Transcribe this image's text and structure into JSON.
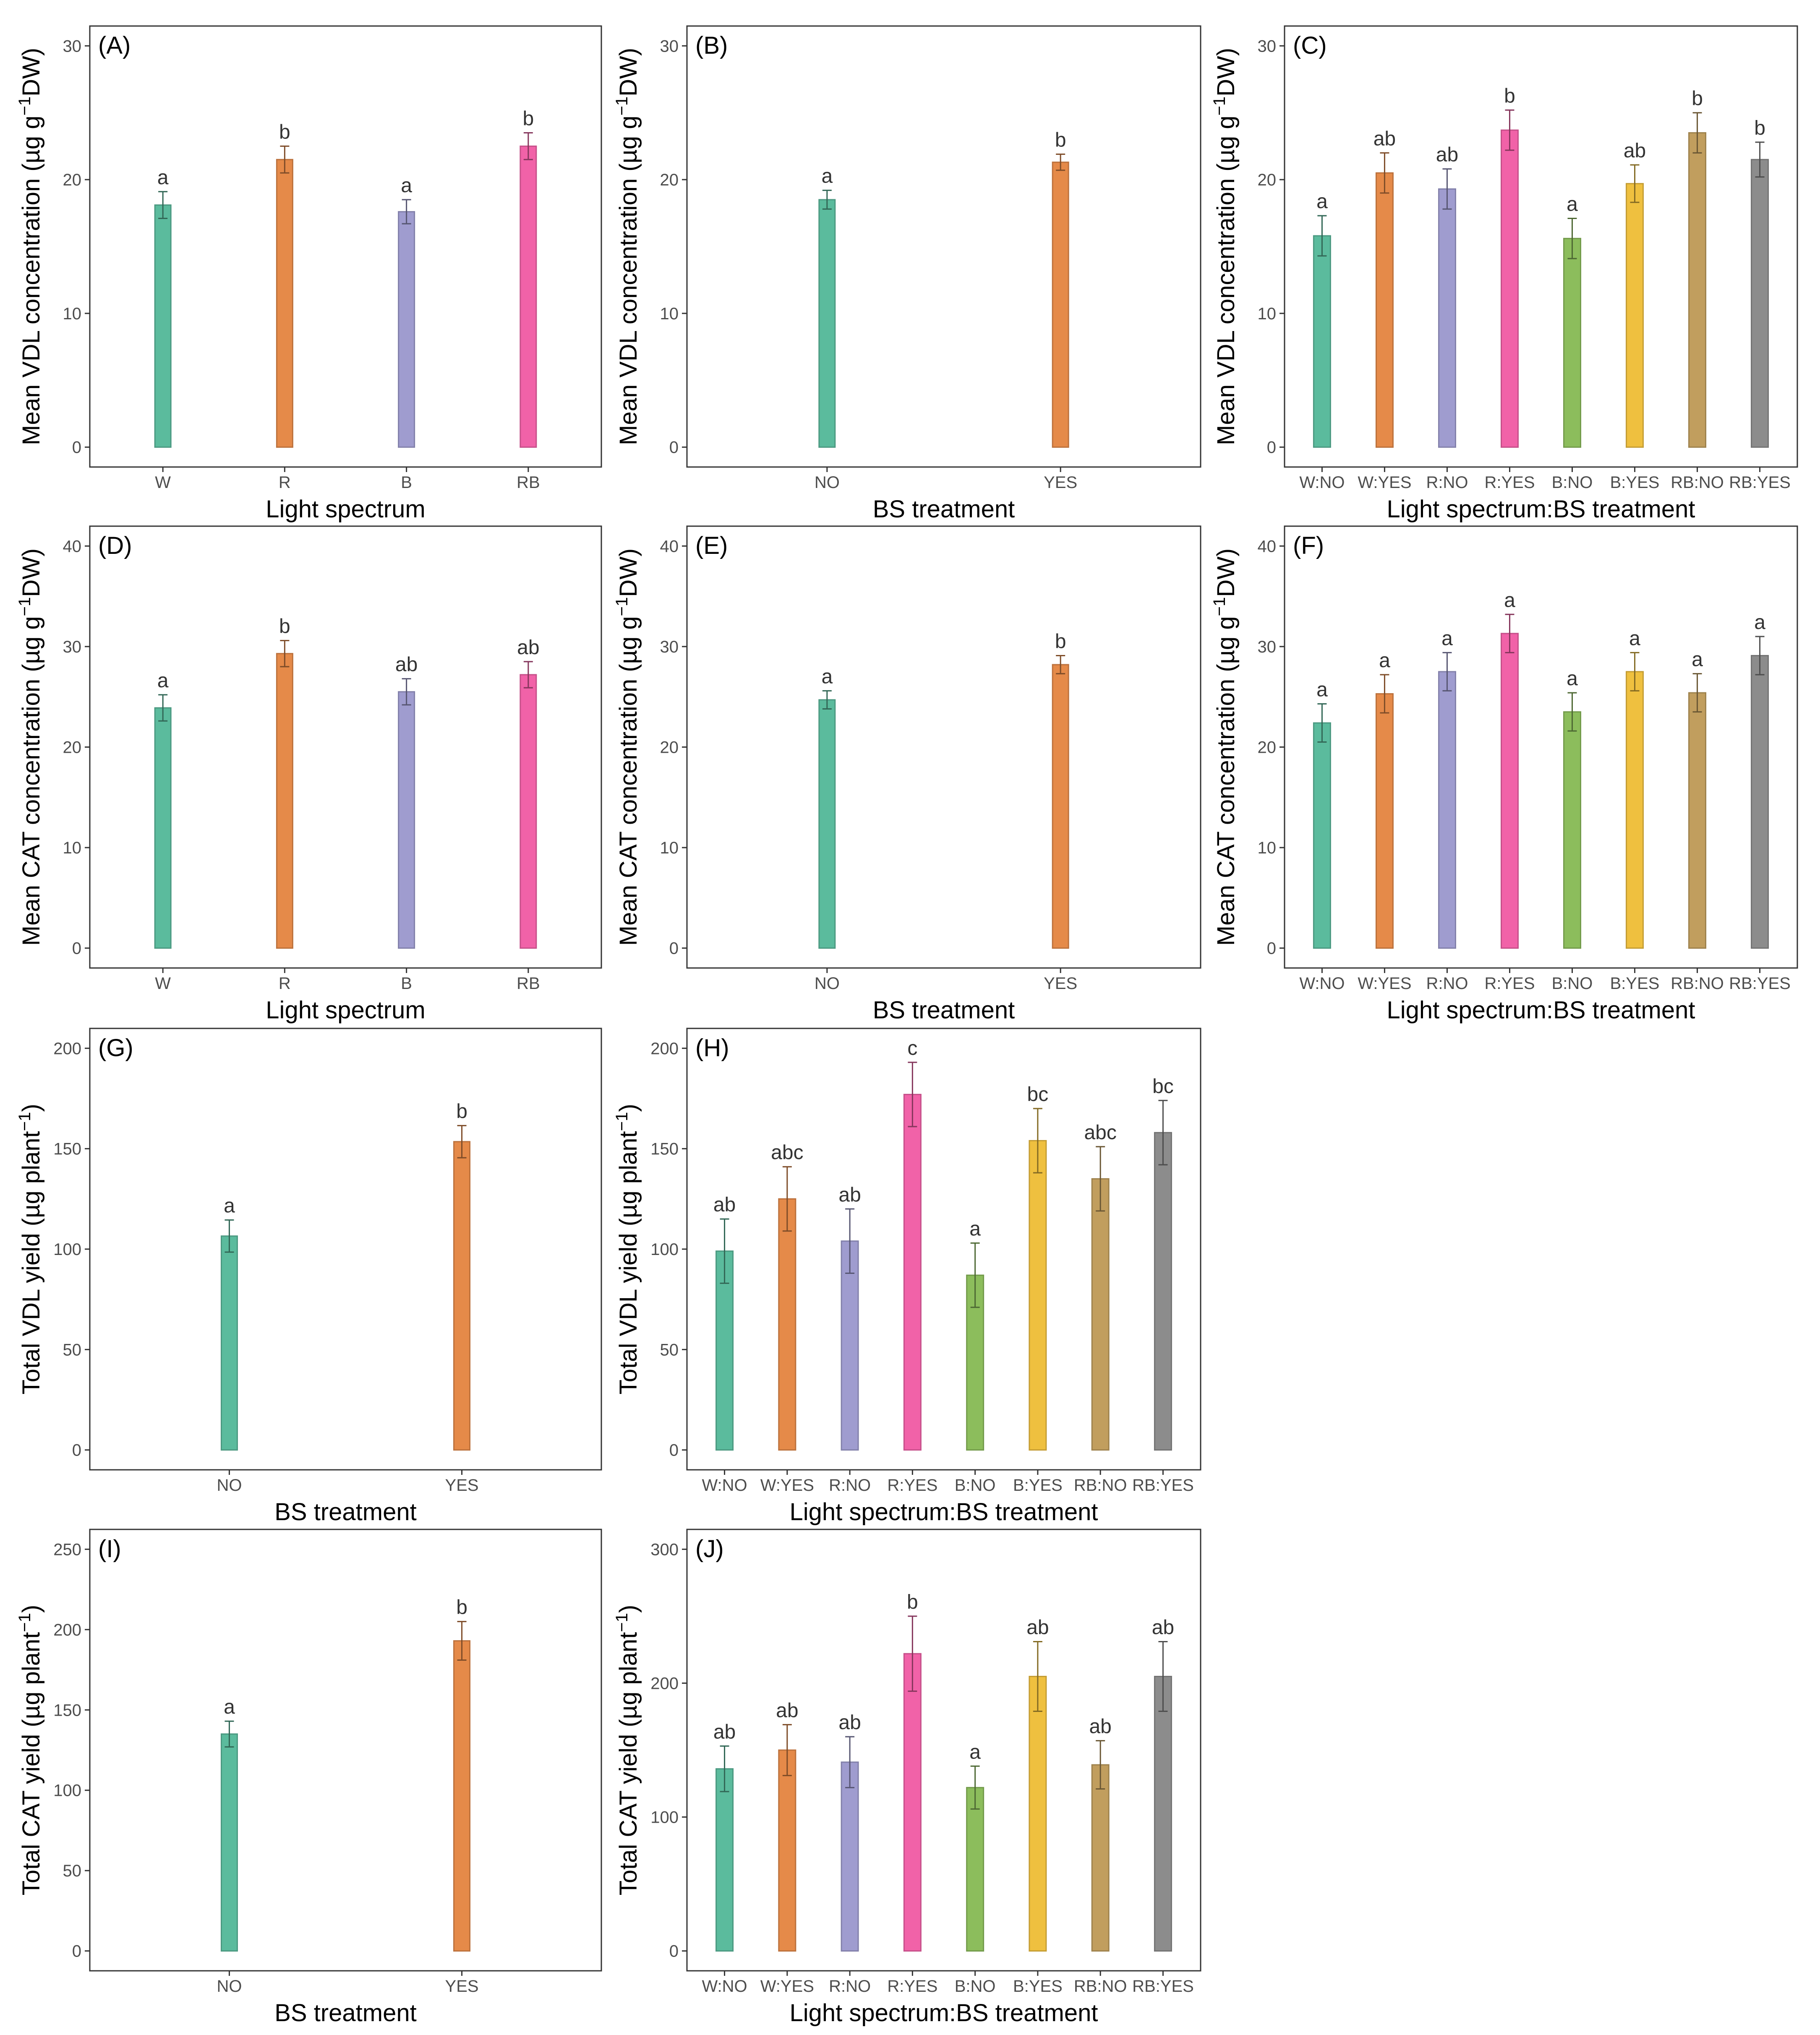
{
  "figure": {
    "colors": {
      "W": "#5bbb9d",
      "R": "#e58a49",
      "B": "#9f9ccf",
      "RB": "#f162a8",
      "W:NO": "#5bbb9d",
      "W:YES": "#e58a49",
      "R:NO": "#9f9ccf",
      "R:YES": "#f162a8",
      "B:NO": "#8cbd5c",
      "B:YES": "#efc03f",
      "RB:NO": "#c19e5e",
      "RB:YES": "#8c8c8c",
      "NO": "#5bbb9d",
      "YES": "#e58a49"
    }
  },
  "chart_data": [
    {
      "panel": "(A)",
      "type": "bar",
      "categories": [
        "W",
        "R",
        "B",
        "RB"
      ],
      "values": [
        18.1,
        21.5,
        17.6,
        22.5
      ],
      "errors": [
        1.0,
        1.0,
        0.9,
        1.0
      ],
      "labels": [
        "a",
        "b",
        "a",
        "b"
      ],
      "xlabel": "Light spectrum",
      "ylabel_main": "Mean VDL concentration (µg g",
      "ylabel_sup": "−1",
      "ylabel_tail": "DW)",
      "ylim": [
        0,
        30
      ],
      "yticks": [
        0,
        10,
        20,
        30
      ],
      "grid": false
    },
    {
      "panel": "(B)",
      "type": "bar",
      "categories": [
        "NO",
        "YES"
      ],
      "values": [
        18.5,
        21.3
      ],
      "errors": [
        0.7,
        0.6
      ],
      "labels": [
        "a",
        "b"
      ],
      "xlabel": "BS treatment",
      "ylabel_main": "Mean VDL concentration (µg g",
      "ylabel_sup": "−1",
      "ylabel_tail": "DW)",
      "ylim": [
        0,
        30
      ],
      "yticks": [
        0,
        10,
        20,
        30
      ],
      "grid": false
    },
    {
      "panel": "(C)",
      "type": "bar",
      "categories": [
        "W:NO",
        "W:YES",
        "R:NO",
        "R:YES",
        "B:NO",
        "B:YES",
        "RB:NO",
        "RB:YES"
      ],
      "values": [
        15.8,
        20.5,
        19.3,
        23.7,
        15.6,
        19.7,
        23.5,
        21.5
      ],
      "errors": [
        1.5,
        1.5,
        1.5,
        1.5,
        1.5,
        1.4,
        1.5,
        1.3
      ],
      "labels": [
        "a",
        "ab",
        "ab",
        "b",
        "a",
        "ab",
        "b",
        "b"
      ],
      "xlabel": "Light spectrum:BS treatment",
      "ylabel_main": "Mean VDL concentration (µg g",
      "ylabel_sup": "−1",
      "ylabel_tail": "DW)",
      "ylim": [
        0,
        30
      ],
      "yticks": [
        0,
        10,
        20,
        30
      ],
      "grid": false
    },
    {
      "panel": "(D)",
      "type": "bar",
      "categories": [
        "W",
        "R",
        "B",
        "RB"
      ],
      "values": [
        23.9,
        29.3,
        25.5,
        27.2
      ],
      "errors": [
        1.3,
        1.3,
        1.3,
        1.3
      ],
      "labels": [
        "a",
        "b",
        "ab",
        "ab"
      ],
      "xlabel": "Light spectrum",
      "ylabel_main": "Mean CAT concentration (µg g",
      "ylabel_sup": "−1",
      "ylabel_tail": "DW)",
      "ylim": [
        0,
        40
      ],
      "yticks": [
        0,
        10,
        20,
        30,
        40
      ],
      "grid": false
    },
    {
      "panel": "(E)",
      "type": "bar",
      "categories": [
        "NO",
        "YES"
      ],
      "values": [
        24.7,
        28.2
      ],
      "errors": [
        0.9,
        0.9
      ],
      "labels": [
        "a",
        "b"
      ],
      "xlabel": "BS treatment",
      "ylabel_main": "Mean CAT concentration (µg g",
      "ylabel_sup": "−1",
      "ylabel_tail": "DW)",
      "ylim": [
        0,
        40
      ],
      "yticks": [
        0,
        10,
        20,
        30,
        40
      ],
      "grid": false
    },
    {
      "panel": "(F)",
      "type": "bar",
      "categories": [
        "W:NO",
        "W:YES",
        "R:NO",
        "R:YES",
        "B:NO",
        "B:YES",
        "RB:NO",
        "RB:YES"
      ],
      "values": [
        22.4,
        25.3,
        27.5,
        31.3,
        23.5,
        27.5,
        25.4,
        29.1
      ],
      "errors": [
        1.9,
        1.9,
        1.9,
        1.9,
        1.9,
        1.9,
        1.9,
        1.9
      ],
      "labels": [
        "a",
        "a",
        "a",
        "a",
        "a",
        "a",
        "a",
        "a"
      ],
      "xlabel": "Light spectrum:BS treatment",
      "ylabel_main": "Mean CAT concentration (µg g",
      "ylabel_sup": "−1",
      "ylabel_tail": "DW)",
      "ylim": [
        0,
        40
      ],
      "yticks": [
        0,
        10,
        20,
        30,
        40
      ],
      "grid": false
    },
    {
      "panel": "(G)",
      "type": "bar",
      "categories": [
        "NO",
        "YES"
      ],
      "values": [
        106.5,
        153.5
      ],
      "errors": [
        8,
        8
      ],
      "labels": [
        "a",
        "b"
      ],
      "xlabel": "BS treatment",
      "ylabel_main": "Total VDL yield (µg plant",
      "ylabel_sup": "−1",
      "ylabel_tail": ")",
      "ylim": [
        0,
        200
      ],
      "yticks": [
        0,
        50,
        100,
        150,
        200
      ],
      "grid": false
    },
    {
      "panel": "(H)",
      "type": "bar",
      "categories": [
        "W:NO",
        "W:YES",
        "R:NO",
        "R:YES",
        "B:NO",
        "B:YES",
        "RB:NO",
        "RB:YES"
      ],
      "values": [
        99,
        125,
        104,
        177,
        87,
        154,
        135,
        158
      ],
      "errors": [
        16,
        16,
        16,
        16,
        16,
        16,
        16,
        16
      ],
      "labels": [
        "ab",
        "abc",
        "ab",
        "c",
        "a",
        "bc",
        "abc",
        "bc"
      ],
      "xlabel": "Light spectrum:BS treatment",
      "ylabel_main": "Total VDL yield (µg plant",
      "ylabel_sup": "−1",
      "ylabel_tail": ")",
      "ylim": [
        0,
        200
      ],
      "yticks": [
        0,
        50,
        100,
        150,
        200
      ],
      "grid": false
    },
    {
      "panel": "(I)",
      "type": "bar",
      "categories": [
        "NO",
        "YES"
      ],
      "values": [
        135,
        193
      ],
      "errors": [
        8,
        12
      ],
      "labels": [
        "a",
        "b"
      ],
      "xlabel": "BS treatment",
      "ylabel_main": "Total CAT yield (µg plant",
      "ylabel_sup": "−1",
      "ylabel_tail": ")",
      "ylim": [
        0,
        250
      ],
      "yticks": [
        0,
        50,
        100,
        150,
        200,
        250
      ],
      "grid": false
    },
    {
      "panel": "(J)",
      "type": "bar",
      "categories": [
        "W:NO",
        "W:YES",
        "R:NO",
        "R:YES",
        "B:NO",
        "B:YES",
        "RB:NO",
        "RB:YES"
      ],
      "values": [
        136,
        150,
        141,
        222,
        122,
        205,
        139,
        205
      ],
      "errors": [
        17,
        19,
        19,
        28,
        16,
        26,
        18,
        26
      ],
      "labels": [
        "ab",
        "ab",
        "ab",
        "b",
        "a",
        "ab",
        "ab",
        "ab"
      ],
      "xlabel": "Light spectrum:BS treatment",
      "ylabel_main": "Total CAT yield (µg plant",
      "ylabel_sup": "−1",
      "ylabel_tail": ")",
      "ylim": [
        0,
        300
      ],
      "yticks": [
        0,
        100,
        200,
        300
      ],
      "grid": false
    }
  ]
}
